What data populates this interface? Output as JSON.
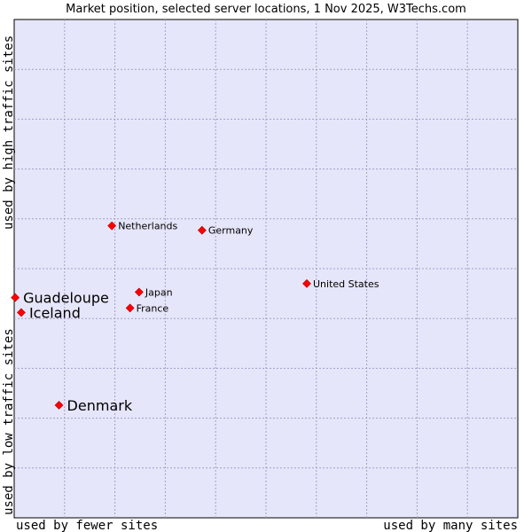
{
  "chart_data": {
    "type": "scatter",
    "title": "Market position, selected server locations, 1 Nov 2025, W3Techs.com",
    "xlabel_left": "used by fewer sites",
    "xlabel_right": "used by many sites",
    "ylabel_bottom": "used by low traffic sites",
    "ylabel_top": "used by high traffic sites",
    "xlim": [
      0,
      100
    ],
    "ylim": [
      0,
      100
    ],
    "grid": true,
    "points": [
      {
        "label": "Netherlands",
        "x": 19.4,
        "y": 58.6,
        "highlight": false
      },
      {
        "label": "Germany",
        "x": 37.3,
        "y": 57.7,
        "highlight": false
      },
      {
        "label": "United States",
        "x": 58.1,
        "y": 47.0,
        "highlight": false
      },
      {
        "label": "Japan",
        "x": 24.8,
        "y": 45.3,
        "highlight": false
      },
      {
        "label": "France",
        "x": 23.0,
        "y": 42.1,
        "highlight": false
      },
      {
        "label": "Guadeloupe",
        "x": 0.2,
        "y": 44.2,
        "highlight": true
      },
      {
        "label": "Iceland",
        "x": 1.4,
        "y": 41.2,
        "highlight": true
      },
      {
        "label": "Denmark",
        "x": 8.9,
        "y": 22.6,
        "highlight": true
      }
    ],
    "colors": {
      "plot_bg": "#e6e6fa",
      "grid": "#a0a0c8",
      "axis": "#000000",
      "marker": "#ff0000"
    }
  }
}
